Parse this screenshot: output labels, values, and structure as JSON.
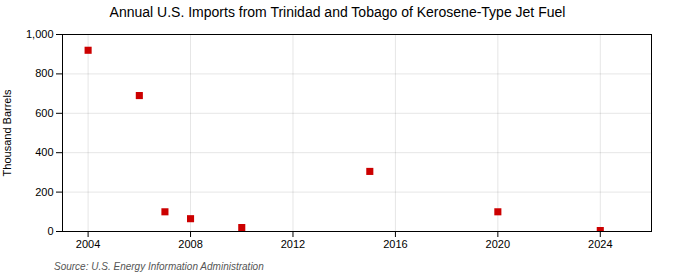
{
  "chart_data": {
    "type": "scatter",
    "title": "Annual U.S. Imports from Trinidad and Tobago of Kerosene-Type Jet Fuel",
    "ylabel": "Thousand Barrels",
    "source": "Source: U.S. Energy Information Administration",
    "x": [
      2004,
      2006,
      2007,
      2008,
      2010,
      2015,
      2020,
      2024
    ],
    "values": [
      920,
      690,
      100,
      65,
      20,
      305,
      100,
      5
    ],
    "color": "#cc0000",
    "marker": "square",
    "xlim": [
      2003,
      2026
    ],
    "ylim": [
      0,
      1000
    ],
    "xticks": [
      2004,
      2008,
      2012,
      2016,
      2020,
      2024
    ],
    "yticks": [
      0,
      200,
      400,
      600,
      800,
      {
        "value": 1000,
        "label": "1,000"
      }
    ],
    "grid": true
  }
}
